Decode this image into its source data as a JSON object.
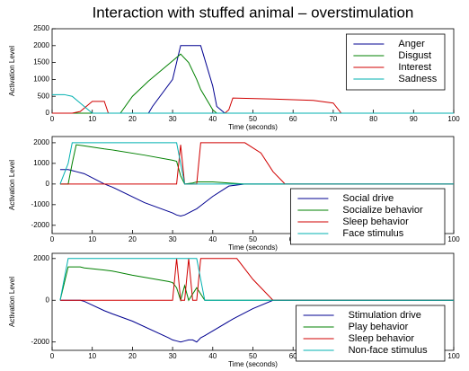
{
  "chart_data": [
    {
      "type": "line",
      "title": "Interaction with stuffed animal – overstimulation",
      "xlabel": "Time (seconds)",
      "ylabel": "Activation Level",
      "x": [
        0,
        3,
        5,
        7,
        10,
        13,
        14,
        17,
        20,
        24,
        25,
        30,
        32,
        34,
        36,
        37,
        40,
        41,
        43,
        44,
        45,
        55,
        65,
        70,
        72,
        80,
        90,
        100
      ],
      "series": [
        {
          "name": "Anger",
          "color": "#000090",
          "values": [
            0,
            0,
            0,
            0,
            0,
            0,
            0,
            0,
            0,
            0,
            200,
            1000,
            2000,
            2000,
            2000,
            2000,
            800,
            200,
            0,
            0,
            0,
            0,
            0,
            0,
            0,
            0,
            0,
            0
          ]
        },
        {
          "name": "Disgust",
          "color": "#008000",
          "values": [
            0,
            0,
            0,
            0,
            0,
            0,
            0,
            0,
            500,
            950,
            1050,
            1550,
            1750,
            1500,
            1000,
            700,
            100,
            0,
            0,
            0,
            0,
            0,
            0,
            0,
            0,
            0,
            0,
            0
          ]
        },
        {
          "name": "Interest",
          "color": "#d00000",
          "values": [
            0,
            0,
            0,
            50,
            350,
            350,
            0,
            0,
            0,
            0,
            0,
            0,
            0,
            0,
            0,
            0,
            0,
            0,
            0,
            100,
            450,
            420,
            380,
            300,
            0,
            0,
            0,
            0
          ]
        },
        {
          "name": "Sadness",
          "color": "#00b0b0",
          "values": [
            550,
            550,
            500,
            300,
            0,
            0,
            0,
            0,
            0,
            0,
            0,
            0,
            0,
            0,
            0,
            0,
            0,
            0,
            0,
            0,
            0,
            0,
            0,
            0,
            0,
            0,
            0,
            0
          ]
        }
      ],
      "xlim": [
        0,
        100
      ],
      "xticks": [
        0,
        10,
        20,
        30,
        40,
        50,
        60,
        70,
        80,
        90,
        100
      ],
      "ylim": [
        0,
        2500
      ],
      "yticks": [
        0,
        500,
        1000,
        1500,
        2000,
        2500
      ],
      "legend": "upper right"
    },
    {
      "type": "line",
      "xlabel": "Time (seconds)",
      "ylabel": "Activation Level",
      "x": [
        2,
        4,
        5,
        6,
        8,
        13,
        15,
        23,
        30,
        31,
        32,
        33,
        35,
        36,
        37,
        40,
        44,
        48,
        52,
        55,
        58,
        60,
        70,
        80,
        90,
        100
      ],
      "series": [
        {
          "name": "Social drive",
          "color": "#000090",
          "values": [
            700,
            700,
            650,
            600,
            500,
            0,
            -150,
            -900,
            -1400,
            -1500,
            -1550,
            -1500,
            -1300,
            -1200,
            -1050,
            -600,
            -100,
            0,
            0,
            0,
            0,
            0,
            0,
            0,
            0,
            0
          ]
        },
        {
          "name": "Socialize behavior",
          "color": "#008000",
          "values": [
            0,
            0,
            1000,
            1900,
            1850,
            1700,
            1650,
            1400,
            1150,
            1100,
            400,
            0,
            50,
            100,
            100,
            100,
            50,
            0,
            0,
            0,
            0,
            0,
            0,
            0,
            0,
            0
          ]
        },
        {
          "name": "Sleep behavior",
          "color": "#d00000",
          "values": [
            0,
            0,
            0,
            0,
            0,
            0,
            0,
            0,
            0,
            0,
            1900,
            0,
            0,
            0,
            2000,
            2000,
            2000,
            2000,
            1500,
            600,
            0,
            0,
            0,
            0,
            0,
            0
          ]
        },
        {
          "name": "Face stimulus",
          "color": "#00b0b0",
          "values": [
            0,
            1000,
            2000,
            2000,
            2000,
            2000,
            2000,
            2000,
            2000,
            2000,
            1000,
            0,
            0,
            0,
            0,
            0,
            0,
            0,
            0,
            0,
            0,
            0,
            0,
            0,
            0,
            0
          ]
        }
      ],
      "xlim": [
        0,
        100
      ],
      "xticks": [
        0,
        10,
        20,
        30,
        40,
        50,
        60,
        70,
        80,
        90,
        100
      ],
      "ylim": [
        -2400,
        2300
      ],
      "yticks": [
        -2000,
        -1000,
        0,
        1000,
        2000
      ],
      "legend": "lower right"
    },
    {
      "type": "line",
      "xlabel": "Time (seconds)",
      "ylabel": "Activation Level",
      "x": [
        2,
        4,
        7,
        8,
        13,
        15,
        20,
        29,
        30,
        31,
        32,
        33,
        34,
        35,
        36,
        37,
        38,
        45,
        46,
        50,
        55,
        60,
        70,
        80,
        90,
        100
      ],
      "series": [
        {
          "name": "Stimulation drive",
          "color": "#000090",
          "values": [
            0,
            0,
            0,
            -50,
            -500,
            -650,
            -1000,
            -1800,
            -1900,
            -1950,
            -2000,
            -1950,
            -1900,
            -1900,
            -2000,
            -1800,
            -1700,
            -900,
            -800,
            -400,
            0,
            0,
            0,
            0,
            0,
            0
          ]
        },
        {
          "name": "Play behavior",
          "color": "#008000",
          "values": [
            0,
            1600,
            1600,
            1550,
            1450,
            1400,
            1200,
            900,
            850,
            600,
            0,
            700,
            0,
            300,
            600,
            300,
            0,
            0,
            0,
            0,
            0,
            0,
            0,
            0,
            0,
            0
          ]
        },
        {
          "name": "Sleep behavior",
          "color": "#d00000",
          "values": [
            0,
            0,
            0,
            0,
            0,
            0,
            0,
            0,
            0,
            2000,
            0,
            0,
            2000,
            0,
            0,
            2000,
            2000,
            2000,
            2000,
            1000,
            0,
            0,
            0,
            0,
            0,
            0
          ]
        },
        {
          "name": "Non-face stimulus",
          "color": "#00b0b0",
          "values": [
            0,
            2000,
            2000,
            2000,
            2000,
            2000,
            2000,
            2000,
            2000,
            2000,
            2000,
            2000,
            2000,
            2000,
            2000,
            1000,
            0,
            0,
            0,
            0,
            0,
            0,
            0,
            0,
            0,
            0
          ]
        }
      ],
      "xlim": [
        0,
        100
      ],
      "xticks": [
        0,
        10,
        20,
        30,
        40,
        50,
        60,
        70,
        80,
        90,
        100
      ],
      "ylim": [
        -2400,
        2250
      ],
      "yticks": [
        -2000,
        0,
        2000
      ],
      "legend": "lower right"
    }
  ]
}
